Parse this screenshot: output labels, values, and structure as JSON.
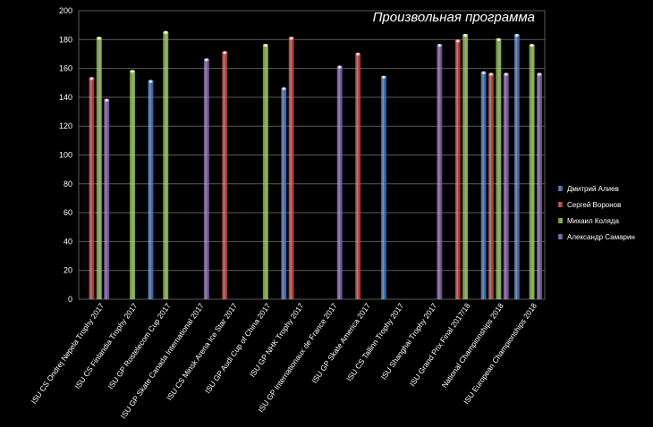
{
  "chart_data": {
    "type": "bar",
    "title": "Произвольная программа",
    "ylim": [
      0,
      200
    ],
    "yticks": [
      0,
      20,
      40,
      60,
      80,
      100,
      120,
      140,
      160,
      180,
      200
    ],
    "grid": "horizontal",
    "legend_placement": "right",
    "categories": [
      "ISU CS Ondrej Nepela Trophy 2017",
      "ISU CS Finlandia Trophy 2017",
      "ISU GP Rostelecom Cup 2017",
      "ISU GP Skate Canada International 2017",
      "ISU CS Minsk Arena Ice Star 2017",
      "ISU GP Audi Cup of China 2017",
      "ISU GP NHK Trophy 2017",
      "ISU GP Internationaux de France 2017",
      "ISU GP Skate America 2017",
      "ISU CS Tallinn Trophy 2017",
      "ISU Shanghai Trophy 2017",
      "ISU Grand Prix Final 2017/18",
      "National Championships 2018",
      "ISU European Championships 2018"
    ],
    "series": [
      {
        "name": "Дмитрий Алиев",
        "color": "#3a72c4",
        "values": [
          null,
          null,
          151,
          null,
          null,
          null,
          146,
          null,
          null,
          154,
          null,
          null,
          157,
          183
        ]
      },
      {
        "name": "Сергей Воронов",
        "color": "#c93a34",
        "values": [
          153,
          null,
          null,
          null,
          171,
          null,
          181,
          null,
          170,
          null,
          null,
          179,
          156,
          null
        ]
      },
      {
        "name": "Михаил Коляда",
        "color": "#8fc63f",
        "values": [
          181,
          158,
          185,
          null,
          null,
          176,
          null,
          null,
          null,
          null,
          null,
          183,
          180,
          176
        ]
      },
      {
        "name": "Александр Самарин",
        "color": "#8257b0",
        "values": [
          138,
          null,
          null,
          166,
          null,
          null,
          null,
          161,
          null,
          null,
          176,
          null,
          156,
          156
        ]
      }
    ]
  }
}
